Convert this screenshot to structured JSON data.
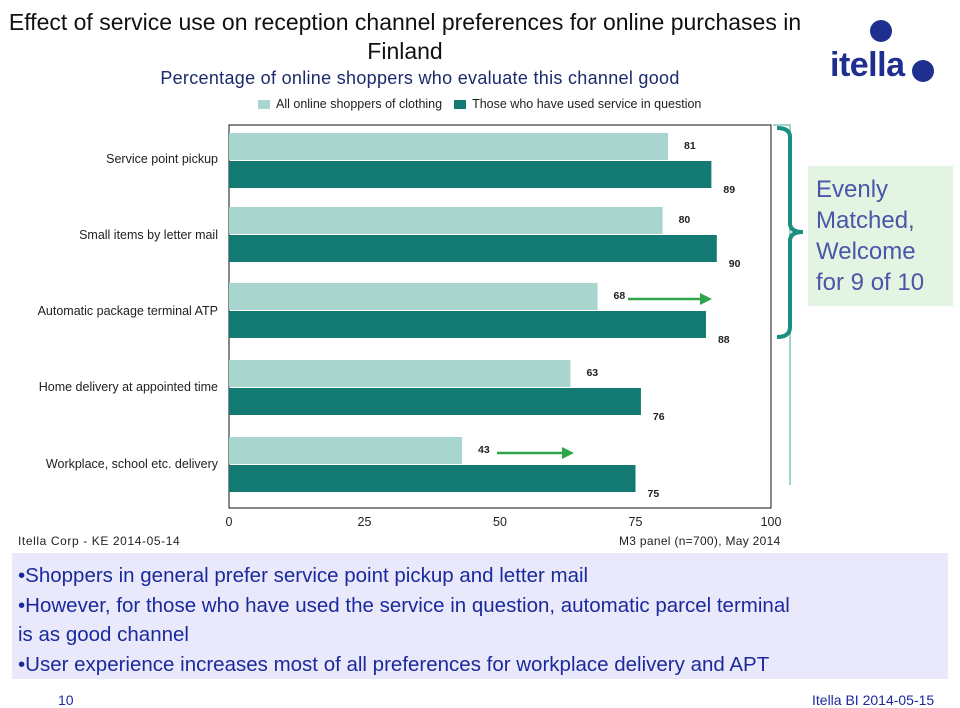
{
  "title": "Effect of service use on reception channel preferences for online purchases in Finland",
  "subtitle": "Percentage of online shoppers who evaluate this channel good",
  "logo": {
    "text": "itella",
    "icon": "itella-dots-logo"
  },
  "colors": {
    "light": "#a9d5cf",
    "dark": "#127a72",
    "arrow": "#2ea54a",
    "bracket": "#1a8e7f",
    "callout_bg": "#e3f4e2",
    "callout_text": "#4a56a8",
    "bullet_bg": "#e9e9fb",
    "bullet_text": "#1a2a9c"
  },
  "chart_data": {
    "type": "bar",
    "orientation": "horizontal",
    "categories": [
      "Service point pickup",
      "Small items by letter mail",
      "Automatic package terminal ATP",
      "Home delivery at appointed time",
      "Workplace, school etc. delivery"
    ],
    "series": [
      {
        "name": "All online shoppers of clothing",
        "values": [
          81,
          80,
          68,
          63,
          43
        ]
      },
      {
        "name": "Those who have used service in question",
        "values": [
          89,
          90,
          88,
          76,
          75
        ]
      }
    ],
    "xlim": [
      0,
      100
    ],
    "xticks": [
      "0",
      "25",
      "50",
      "75",
      "100"
    ],
    "grid": false,
    "legend": "top"
  },
  "callout": {
    "lines": [
      "Evenly",
      "Matched,",
      "Welcome",
      "for 9 of 10"
    ]
  },
  "footer": {
    "left": "Itella Corp - KE 2014-05-14",
    "right": "M3 panel (n=700), May 2014"
  },
  "bullets": [
    "•Shoppers in general prefer service point pickup and letter mail",
    "•However, for those who have used the service in question, automatic parcel terminal",
    "is as good channel",
    "•User experience increases most of all preferences for workplace delivery and APT"
  ],
  "page": {
    "number": "10",
    "label": "Itella BI 2014-05-15"
  }
}
